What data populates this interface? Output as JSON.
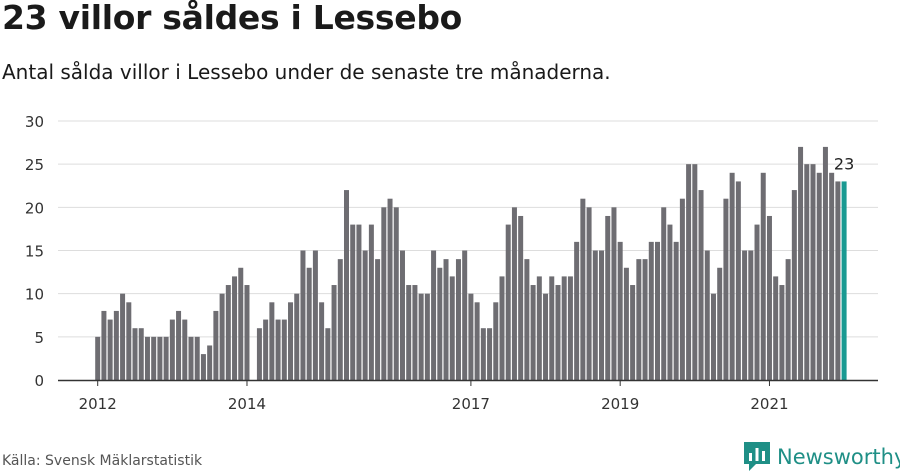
{
  "header": {
    "title": "23 villor såldes i Lessebo",
    "subtitle": "Antal sålda villor i Lessebo under de senaste tre månaderna."
  },
  "footer": {
    "source": "Källa: Svensk Mäklarstatistik",
    "brand": "Newsworthy"
  },
  "colors": {
    "bar": "#6e6d72",
    "highlight": "#1a9a92",
    "grid": "#dddddd",
    "axis": "#333333",
    "brand": "#1f8f86"
  },
  "chart_data": {
    "type": "bar",
    "title": "23 villor såldes i Lessebo",
    "subtitle": "Antal sålda villor i Lessebo under de senaste tre månaderna.",
    "xlabel": "",
    "ylabel": "",
    "ylim": [
      0,
      30
    ],
    "yticks": [
      0,
      5,
      10,
      15,
      20,
      25,
      30
    ],
    "grid": true,
    "start": "2012-01",
    "x_tick_labels": [
      {
        "label": "2012",
        "index": 0
      },
      {
        "label": "2014",
        "index": 24
      },
      {
        "label": "2017",
        "index": 60
      },
      {
        "label": "2019",
        "index": 84
      },
      {
        "label": "2021",
        "index": 108
      }
    ],
    "values": [
      5,
      8,
      7,
      8,
      10,
      9,
      6,
      6,
      5,
      5,
      5,
      5,
      7,
      8,
      7,
      5,
      5,
      3,
      4,
      8,
      10,
      11,
      12,
      13,
      11,
      0,
      6,
      7,
      9,
      7,
      7,
      9,
      10,
      15,
      13,
      15,
      9,
      6,
      11,
      14,
      22,
      18,
      18,
      15,
      18,
      14,
      20,
      21,
      20,
      15,
      11,
      11,
      10,
      10,
      15,
      13,
      14,
      12,
      14,
      15,
      10,
      9,
      6,
      6,
      9,
      12,
      18,
      20,
      19,
      14,
      11,
      12,
      10,
      12,
      11,
      12,
      12,
      16,
      21,
      20,
      15,
      15,
      19,
      20,
      16,
      13,
      11,
      14,
      14,
      16,
      16,
      20,
      18,
      16,
      21,
      25,
      25,
      22,
      15,
      10,
      13,
      21,
      24,
      23,
      15,
      15,
      18,
      24,
      19,
      12,
      11,
      14,
      22,
      27,
      25,
      25,
      24,
      27,
      24,
      23,
      23
    ],
    "highlight_index": 120,
    "annotation": {
      "text": "23",
      "index": 120
    }
  }
}
